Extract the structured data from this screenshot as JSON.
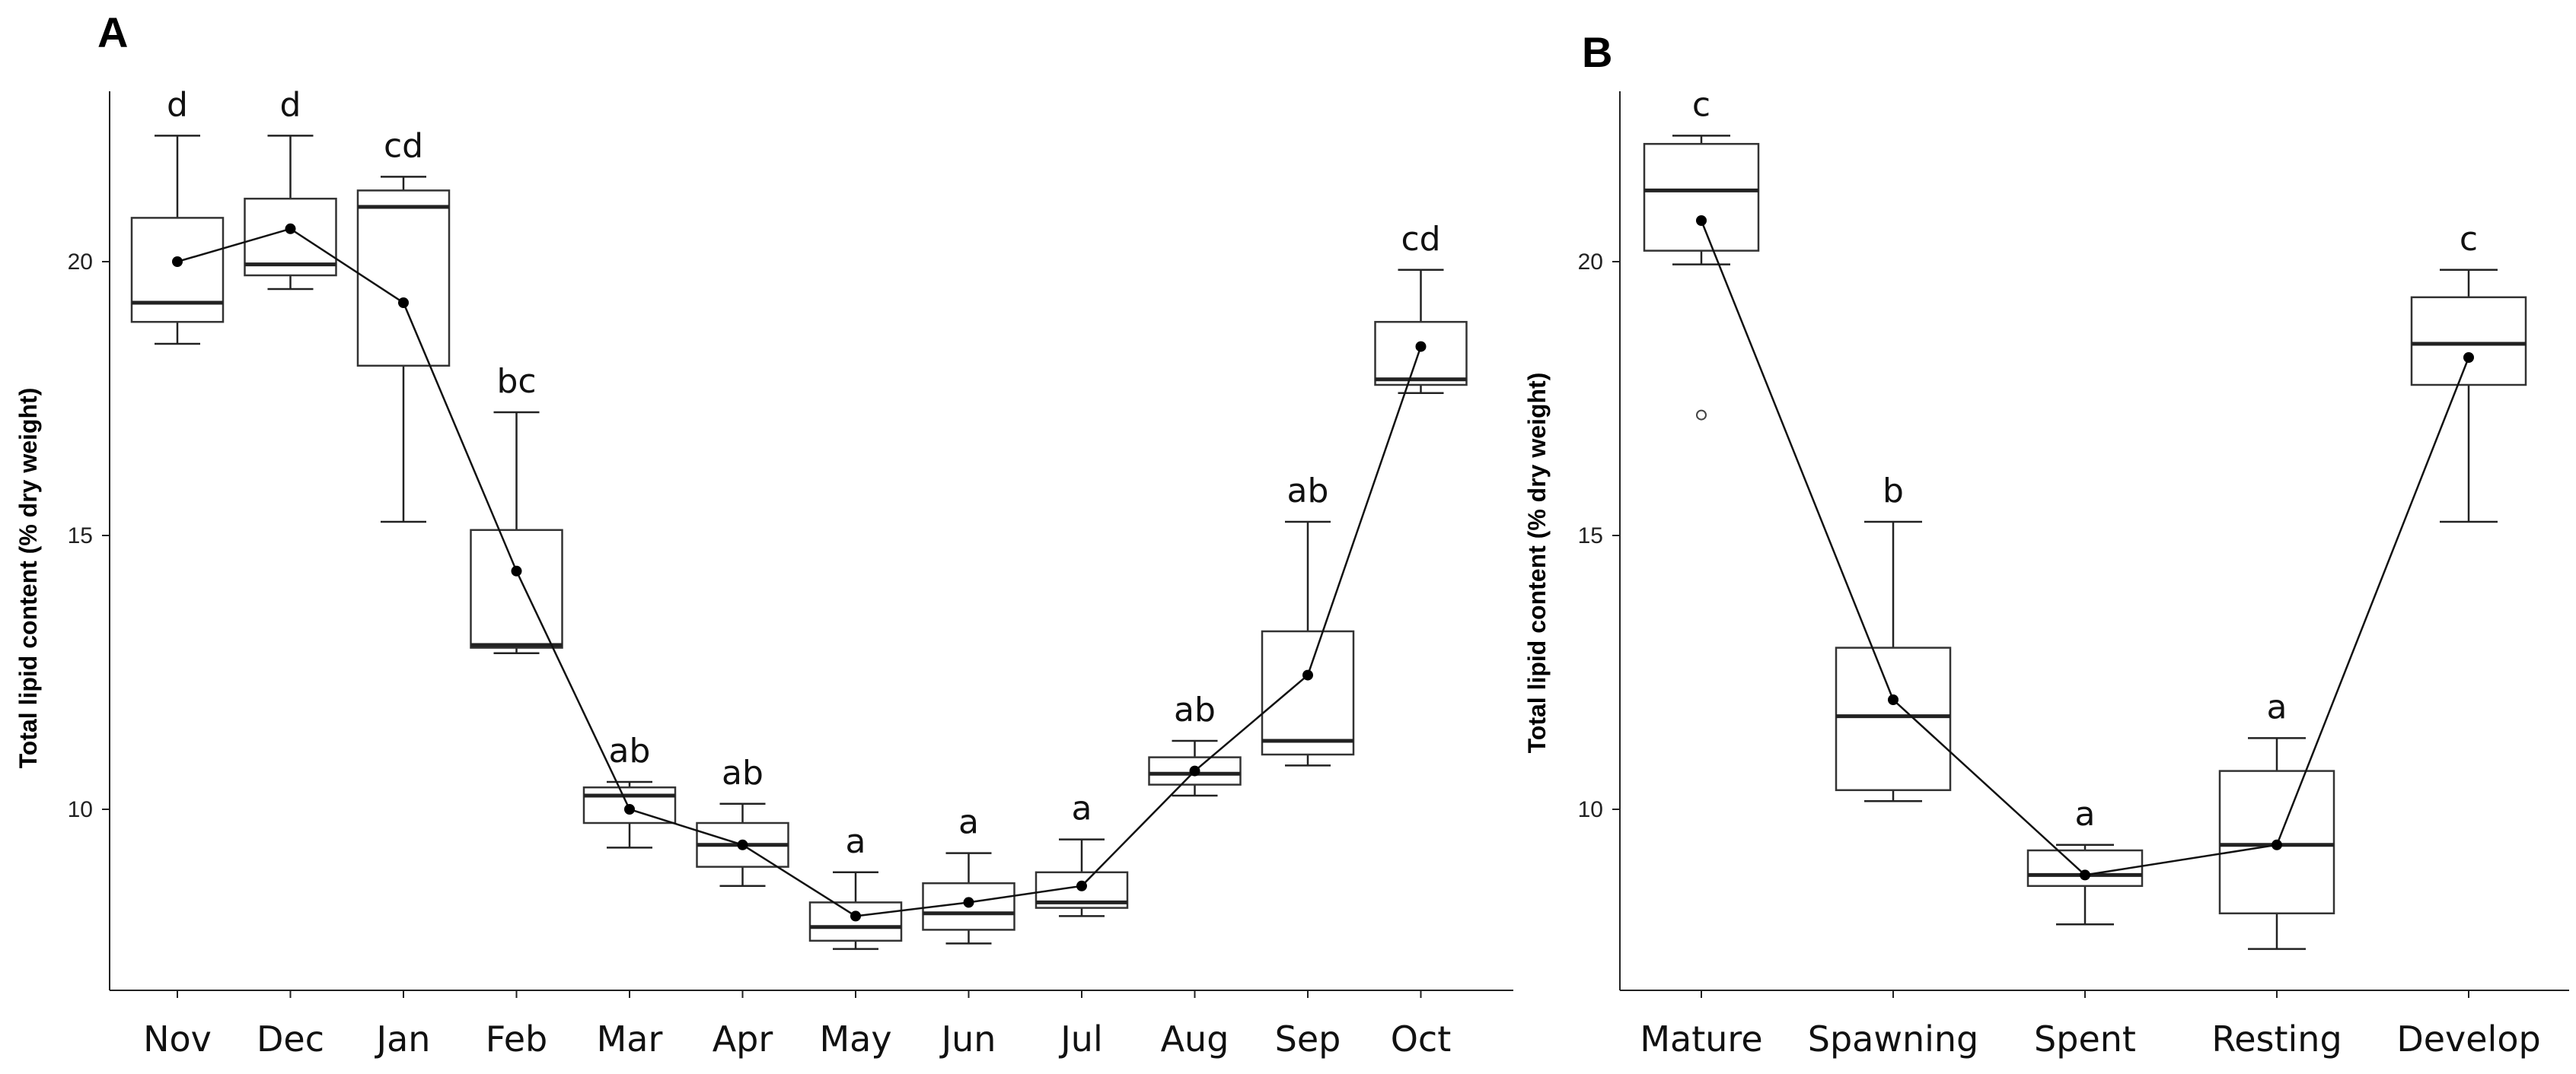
{
  "chart_data": [
    {
      "type": "box",
      "panel": "A",
      "ylabel": "Total lipid content (% dry weight)",
      "xlabel": "",
      "ylim": [
        6.7,
        23.5
      ],
      "yticks": [
        10,
        15,
        20
      ],
      "categories": [
        "Nov",
        "Dec",
        "Jan",
        "Feb",
        "Mar",
        "Apr",
        "May",
        "Jun",
        "Jul",
        "Aug",
        "Sep",
        "Oct"
      ],
      "boxes": [
        {
          "min": 18.5,
          "q1": 18.9,
          "median": 19.25,
          "q3": 20.8,
          "max": 22.3,
          "mean": 20.0,
          "letter": "d"
        },
        {
          "min": 19.5,
          "q1": 19.75,
          "median": 19.95,
          "q3": 21.15,
          "max": 22.3,
          "mean": 20.6,
          "letter": "d"
        },
        {
          "min": 15.25,
          "q1": 18.1,
          "median": 21.0,
          "q3": 21.3,
          "max": 21.55,
          "mean": 19.25,
          "letter": "cd"
        },
        {
          "min": 12.85,
          "q1": 12.95,
          "median": 13.0,
          "q3": 15.1,
          "max": 17.25,
          "mean": 14.35,
          "letter": "bc"
        },
        {
          "min": 9.3,
          "q1": 9.75,
          "median": 10.25,
          "q3": 10.4,
          "max": 10.5,
          "mean": 10.0,
          "letter": "ab"
        },
        {
          "min": 8.6,
          "q1": 8.95,
          "median": 9.35,
          "q3": 9.75,
          "max": 10.1,
          "mean": 9.35,
          "letter": "ab"
        },
        {
          "min": 7.45,
          "q1": 7.6,
          "median": 7.85,
          "q3": 8.3,
          "max": 8.85,
          "mean": 8.05,
          "letter": "a"
        },
        {
          "min": 7.55,
          "q1": 7.8,
          "median": 8.1,
          "q3": 8.65,
          "max": 9.2,
          "mean": 8.3,
          "letter": "a"
        },
        {
          "min": 8.05,
          "q1": 8.2,
          "median": 8.3,
          "q3": 8.85,
          "max": 9.45,
          "mean": 8.6,
          "letter": "a"
        },
        {
          "min": 10.25,
          "q1": 10.45,
          "median": 10.65,
          "q3": 10.95,
          "max": 11.25,
          "mean": 10.7,
          "letter": "ab"
        },
        {
          "min": 10.8,
          "q1": 11.0,
          "median": 11.25,
          "q3": 13.25,
          "max": 15.25,
          "mean": 12.45,
          "letter": "ab"
        },
        {
          "min": 17.6,
          "q1": 17.75,
          "median": 17.85,
          "q3": 18.9,
          "max": 19.85,
          "mean": 18.45,
          "letter": "cd"
        }
      ],
      "mean_line": [
        20.0,
        20.6,
        19.25,
        14.35,
        10.0,
        9.35,
        8.05,
        8.3,
        8.6,
        10.7,
        12.45,
        18.45
      ]
    },
    {
      "type": "box",
      "panel": "B",
      "ylabel": "Total lipid content (% dry weight)",
      "xlabel": "",
      "ylim": [
        6.7,
        23.5
      ],
      "yticks": [
        10,
        15,
        20
      ],
      "categories": [
        "Mature",
        "Spawning",
        "Spent",
        "Resting",
        "Develop"
      ],
      "boxes": [
        {
          "min": 19.95,
          "q1": 20.2,
          "median": 21.3,
          "q3": 22.15,
          "max": 22.3,
          "mean": 20.75,
          "letter": "c",
          "outliers": [
            17.2
          ]
        },
        {
          "min": 10.15,
          "q1": 10.35,
          "median": 11.7,
          "q3": 12.95,
          "max": 15.25,
          "mean": 12.0,
          "letter": "b"
        },
        {
          "min": 7.9,
          "q1": 8.6,
          "median": 8.8,
          "q3": 9.25,
          "max": 9.35,
          "mean": 8.8,
          "letter": "a"
        },
        {
          "min": 7.45,
          "q1": 8.1,
          "median": 9.35,
          "q3": 10.7,
          "max": 11.3,
          "mean": 9.35,
          "letter": "a"
        },
        {
          "min": 15.25,
          "q1": 17.75,
          "median": 18.5,
          "q3": 19.35,
          "max": 19.85,
          "mean": 18.25,
          "letter": "c"
        }
      ],
      "mean_line": [
        20.75,
        12.0,
        8.8,
        9.35,
        18.25
      ]
    }
  ]
}
